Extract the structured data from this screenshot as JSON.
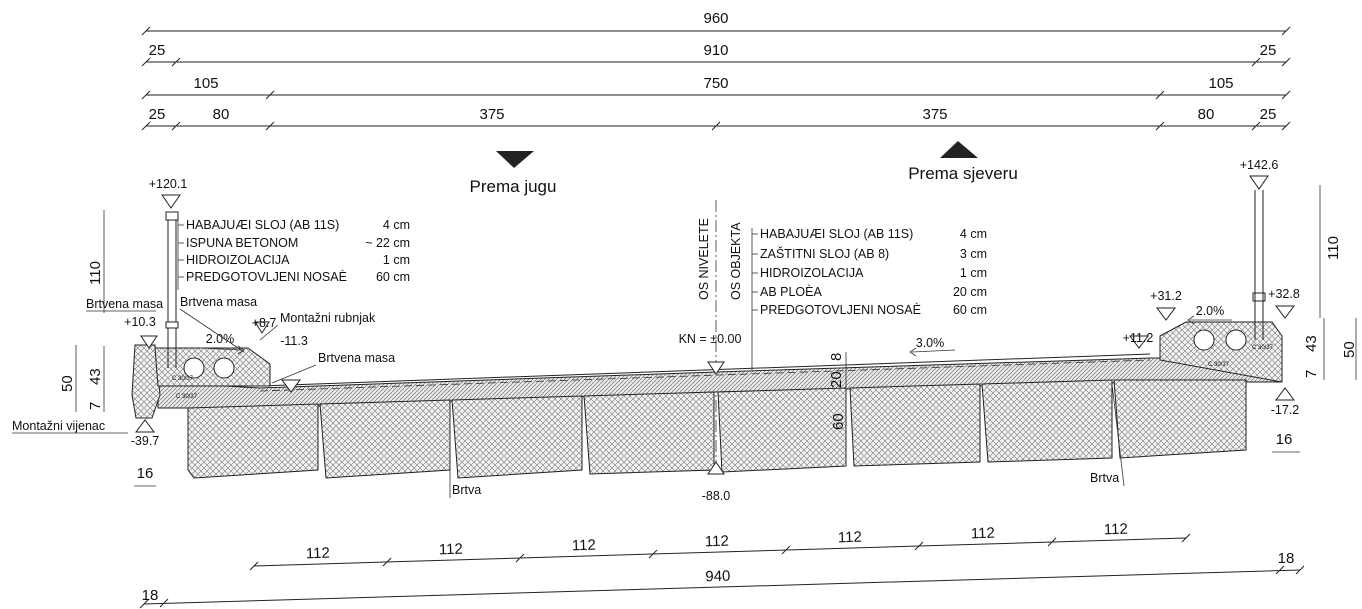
{
  "top_dims": {
    "row1": [
      "960"
    ],
    "row2": [
      "25",
      "910",
      "25"
    ],
    "row3": [
      "105",
      "750",
      "105"
    ],
    "row4": [
      "25",
      "80",
      "375",
      "375",
      "80",
      "25"
    ]
  },
  "directions": {
    "south": "Prema jugu",
    "north": "Prema sjeveru"
  },
  "axes": {
    "niveleta": "OS NIVELETE",
    "objekt": "OS OBJEKTA"
  },
  "layers_left": [
    {
      "name": "HABAJUÆI SLOJ (AB 11S)",
      "value": "4 cm"
    },
    {
      "name": "ISPUNA BETONOM",
      "value": "~ 22 cm"
    },
    {
      "name": "HIDROIZOLACIJA",
      "value": "1 cm"
    },
    {
      "name": "PREDGOTOVLJENI NOSAÈ",
      "value": "60 cm"
    }
  ],
  "layers_right": [
    {
      "name": "HABAJUÆI SLOJ (AB 11S)",
      "value": "4 cm"
    },
    {
      "name": "ZAŠTITNI SLOJ (AB 8)",
      "value": "3 cm"
    },
    {
      "name": "HIDROIZOLACIJA",
      "value": "1 cm"
    },
    {
      "name": "AB PLOÈA",
      "value": "20 cm"
    },
    {
      "name": "PREDGOTOVLJENI NOSAÈ",
      "value": "60 cm"
    }
  ],
  "elevations": {
    "left_top": "+120.1",
    "right_top": "+142.6",
    "left_edge": "+10.3",
    "left_curb": "+8.7",
    "left_curb_low": "-11.3",
    "right_inner": "+11.2",
    "right_curb": "+31.2",
    "right_edge": "+32.8",
    "kn": "KN = ±0.00",
    "bottom": "-88.0",
    "left_bottom": "-39.7",
    "right_bottom": "-17.2"
  },
  "slopes": {
    "left": "2.0%",
    "mid": "3.0%",
    "right": "2.0%"
  },
  "labels": {
    "brtvena_masa_1": "Brtvena masa",
    "brtvena_masa_2": "Brtvena masa",
    "brtvena_masa_3": "Brtvena masa",
    "rubnjak": "Montažni rubnjak",
    "vijenac": "Montažni vijenac",
    "brtva_1": "Brtva",
    "brtva_2": "Brtva",
    "concrete_1": "C 30/37",
    "concrete_2": "C 30/37",
    "concrete_3": "C 30/37",
    "concrete_4": "C 30/37"
  },
  "side_dims": {
    "left_110": "110",
    "left_50": "50",
    "left_43": "43",
    "left_7": "7",
    "left_16": "16",
    "right_110": "110",
    "right_50": "50",
    "right_43": "43",
    "right_7": "7",
    "right_16": "16",
    "mid_8": "8",
    "mid_20": "20",
    "mid_60": "60"
  },
  "bottom_dims": {
    "girders": [
      "112",
      "112",
      "112",
      "112",
      "112",
      "112",
      "112"
    ],
    "total": "940",
    "left": "18",
    "right": "18"
  }
}
